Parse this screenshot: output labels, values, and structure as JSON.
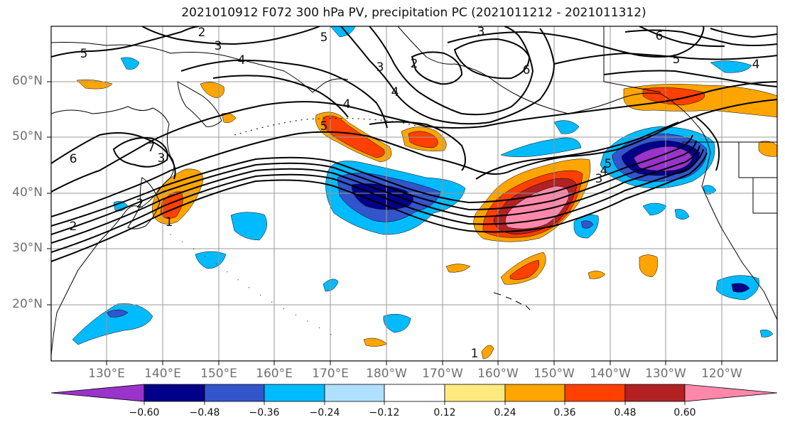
{
  "title": "2021010912 F072 300 hPa PV, precipitation PC (2021011212 - 2021011312)",
  "lat_labels": [
    "60°N",
    "50°N",
    "40°N",
    "30°N",
    "20°N"
  ],
  "lon_labels": [
    "130°E",
    "140°E",
    "150°E",
    "160°E",
    "170°E",
    "180°W",
    "170°W",
    "160°W",
    "150°W",
    "140°W",
    "130°W",
    "120°W"
  ],
  "colorbar": {
    "ticks": [
      "−0.60",
      "−0.48",
      "−0.36",
      "−0.24",
      "−0.12",
      "0.12",
      "0.24",
      "0.36",
      "0.48",
      "0.60"
    ],
    "colors": [
      "#9933cc",
      "#000088",
      "#3355cc",
      "#00bbff",
      "#b0e0ff",
      "#ffffff",
      "#ffea80",
      "#ffa500",
      "#ff4000",
      "#b22222",
      "#ff88aa"
    ]
  },
  "contour_labels": [
    "2",
    "5",
    "3",
    "4",
    "5",
    "3",
    "2",
    "4",
    "6",
    "3",
    "6",
    "5",
    "4",
    "4",
    "5",
    "6",
    "7",
    "3",
    "2",
    "2",
    "1",
    "5",
    "4",
    "3",
    "1"
  ]
}
